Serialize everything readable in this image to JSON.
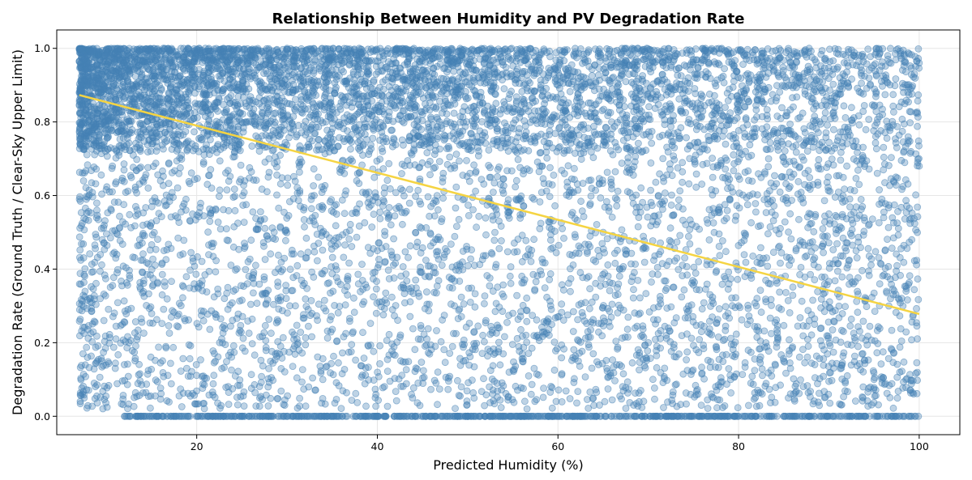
{
  "chart_data": {
    "type": "scatter",
    "title": "Relationship Between Humidity and PV Degradation Rate",
    "xlabel": "Predicted Humidity (%)",
    "ylabel": "Degradation Rate (Ground Truth / Clear-Sky Upper Limit)",
    "xlim": [
      4.5,
      104.5
    ],
    "ylim": [
      -0.05,
      1.05
    ],
    "xticks": [
      20,
      40,
      60,
      80,
      100
    ],
    "xtick_labels": [
      "20",
      "40",
      "60",
      "80",
      "100"
    ],
    "yticks": [
      0.0,
      0.2,
      0.4,
      0.6,
      0.8,
      1.0
    ],
    "ytick_labels": [
      "0.0",
      "0.2",
      "0.4",
      "0.6",
      "0.8",
      "1.0"
    ],
    "grid": true,
    "legend": "none",
    "series": [
      {
        "kind": "points",
        "color": "#4682b4",
        "opacity": 0.35,
        "point_count": 9000,
        "x_range": [
          7,
          100
        ],
        "y_range": [
          0,
          1
        ],
        "sample_points": [
          [
            8,
            0.9
          ],
          [
            10,
            0.95
          ],
          [
            12,
            0.88
          ],
          [
            15,
            0.97
          ],
          [
            18,
            0.92
          ],
          [
            20,
            0.99
          ],
          [
            22,
            0.85
          ],
          [
            25,
            0.96
          ],
          [
            28,
            0.7
          ],
          [
            30,
            0.93
          ],
          [
            33,
            0.6
          ],
          [
            36,
            0.98
          ],
          [
            38,
            0.9
          ],
          [
            40,
            0.45
          ],
          [
            42,
            0.96
          ],
          [
            45,
            0.82
          ],
          [
            48,
            0.35
          ],
          [
            50,
            0.95
          ],
          [
            55,
            0.28
          ],
          [
            60,
            0.9
          ],
          [
            65,
            0.5
          ],
          [
            70,
            0.2
          ],
          [
            75,
            0.97
          ],
          [
            80,
            0.3
          ],
          [
            85,
            0.15
          ],
          [
            90,
            0.55
          ],
          [
            95,
            0.1
          ],
          [
            100,
            0.96
          ],
          [
            100,
            0.68
          ],
          [
            12,
            0.0
          ],
          [
            18,
            0.0
          ],
          [
            25,
            0.0
          ],
          [
            40,
            0.0
          ],
          [
            57,
            0.0
          ],
          [
            62,
            0.0
          ],
          [
            72,
            0.0
          ],
          [
            80,
            0.0
          ],
          [
            92,
            0.0
          ],
          [
            97,
            0.0
          ]
        ]
      },
      {
        "kind": "trend-line",
        "color": "#f5d442",
        "x": [
          7,
          100
        ],
        "y": [
          0.873,
          0.278
        ]
      }
    ]
  }
}
